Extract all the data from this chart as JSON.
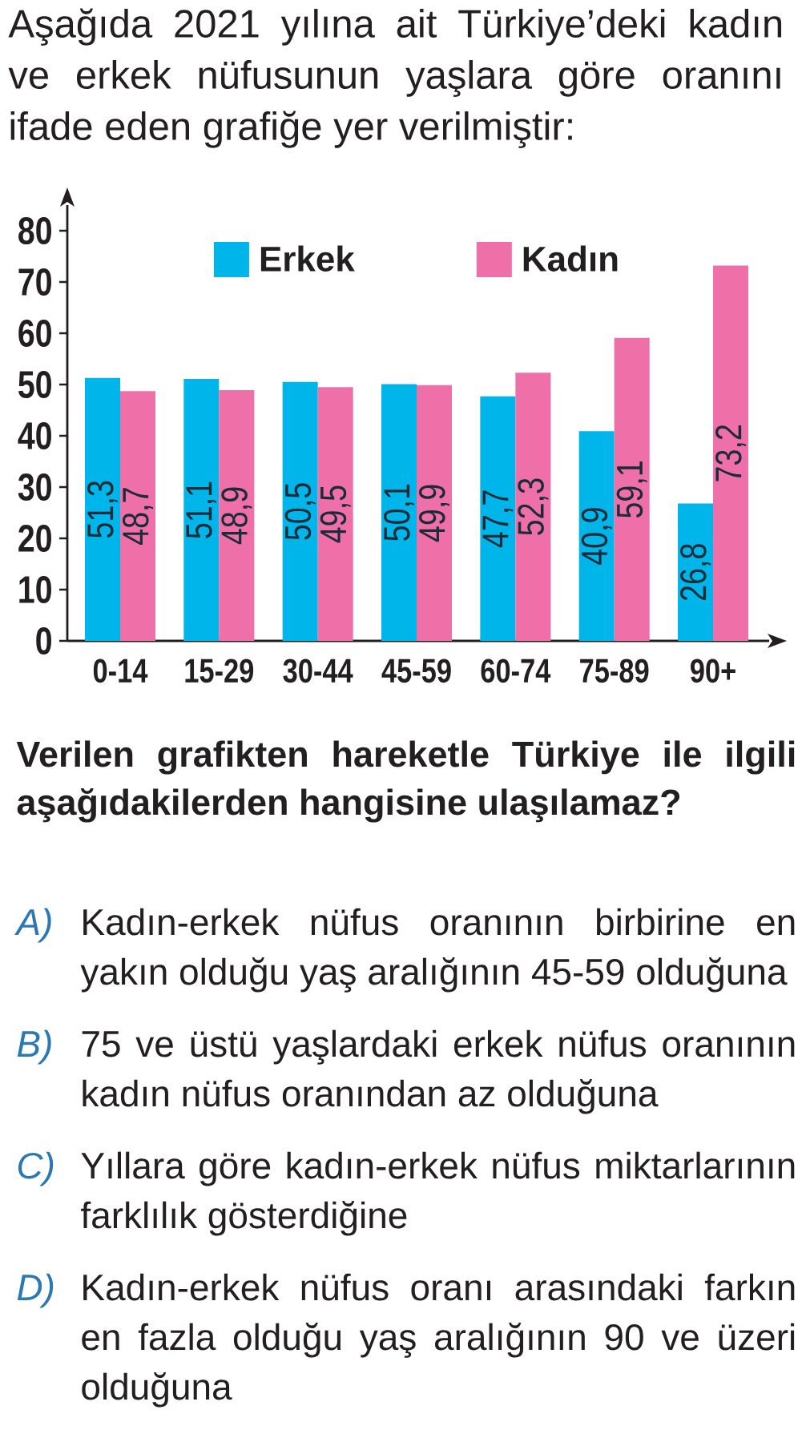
{
  "chart_data": {
    "type": "bar",
    "title": "Aşağıda 2021 yılına ait Türkiye’deki kadın ve erkek nüfusunun yaşlara göre oranını ifade eden grafiğe yer verilmiştir:",
    "categories": [
      "0-14",
      "15-29",
      "30-44",
      "45-59",
      "60-74",
      "75-89",
      "90+"
    ],
    "series": [
      {
        "name": "Erkek",
        "color": "#00b5e9",
        "values": [
          51.3,
          51.1,
          50.5,
          50.1,
          47.7,
          40.9,
          26.8
        ],
        "value_labels": [
          "51,3",
          "51,1",
          "50,5",
          "50,1",
          "47,7",
          "40,9",
          "26,8"
        ]
      },
      {
        "name": "Kadın",
        "color": "#ef6fa8",
        "values": [
          48.7,
          48.9,
          49.5,
          49.9,
          52.3,
          59.1,
          73.2
        ],
        "value_labels": [
          "48,7",
          "48,9",
          "49,5",
          "49,9",
          "52,3",
          "59,1",
          "73,2"
        ]
      }
    ],
    "ylim": [
      0,
      85
    ],
    "yticks": [
      0,
      10,
      20,
      30,
      40,
      50,
      60,
      70,
      80
    ],
    "legend": "top",
    "annotations": [
      "Verilen grafikten hareketle Türkiye ile ilgili aşağıdakilerden hangisine ulaşılamaz?",
      "A)",
      "Kadın-erkek nüfus oranının birbirine en yakın olduğu yaş aralığının 45-59 olduğuna",
      "B)",
      "75 ve üstü yaşlardaki erkek nüfus oranının kadın nüfus oranından az olduğuna",
      "C)",
      "Yıllara göre kadın-erkek nüfus miktarlarının farklılık gösterdiğine",
      "D)",
      "Kadın-erkek nüfus oranı arasındaki farkın en fazla olduğu yaş aralığının 90 ve üzeri olduğuna"
    ]
  }
}
